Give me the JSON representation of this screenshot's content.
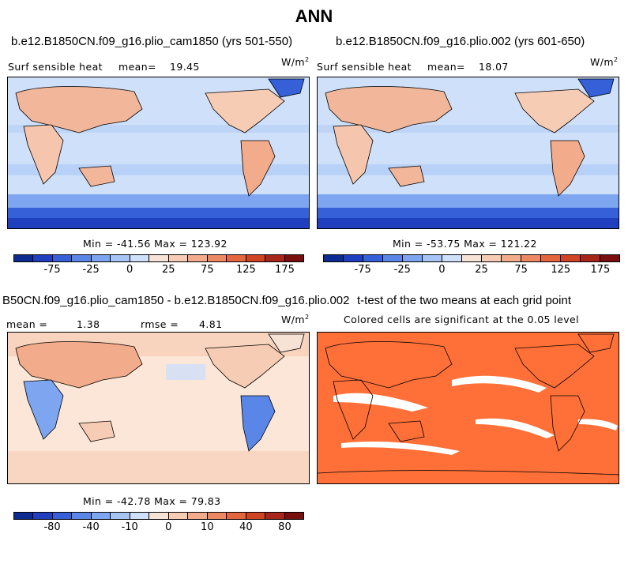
{
  "figure_title": "ANN",
  "units": "W/m",
  "units_sup": "2",
  "panels": {
    "p1": {
      "title": "b.e12.B1850CN.f09_g16.plio_cam1850 (yrs 501-550)",
      "var_label": "Surf sensible heat",
      "stat_label": "mean=",
      "stat_value": "19.45",
      "minmax": "Min = -41.56 Max = 123.92"
    },
    "p2": {
      "title": "b.e12.B1850CN.f09_g16.plio.002 (yrs 601-650)",
      "var_label": "Surf sensible heat",
      "stat_label": "mean=",
      "stat_value": "18.07",
      "minmax": "Min = -53.75 Max = 121.22"
    },
    "p3": {
      "title": "B50CN.f09_g16.plio_cam1850 - b.e12.B1850CN.f09_g16.plio.002",
      "mean_label": "mean =",
      "mean_value": "1.38",
      "rmse_label": "rmse =",
      "rmse_value": "4.81",
      "minmax": "Min = -42.78 Max = 79.83"
    },
    "p4": {
      "title": "t-test of the two means at each grid point",
      "subtitle": "Colored cells are significant at the 0.05 level"
    }
  },
  "colorbars": {
    "abs": {
      "colors": [
        "#0c2a8f",
        "#1f3fbf",
        "#3560d8",
        "#5a86e8",
        "#7ea6f0",
        "#a6c5f5",
        "#cfe0fa",
        "#f7e3d6",
        "#f7ccb4",
        "#f2ab8b",
        "#ec8963",
        "#e3663f",
        "#cf4422",
        "#a8251a",
        "#7a0f10"
      ],
      "tick_labels": [
        "-75",
        "-25",
        "0",
        "25",
        "75",
        "125",
        "175"
      ]
    },
    "diff": {
      "colors": [
        "#0c2a8f",
        "#1f3fbf",
        "#3560d8",
        "#5a86e8",
        "#7ea6f0",
        "#a6c5f5",
        "#cfe0fa",
        "#f7e3d6",
        "#f7ccb4",
        "#f2ab8b",
        "#ec8963",
        "#e3663f",
        "#cf4422",
        "#a8251a",
        "#7a0f10"
      ],
      "tick_labels": [
        "-80",
        "-40",
        "-10",
        "0",
        "10",
        "40",
        "80"
      ]
    }
  },
  "map_colors": {
    "ocean_abs": "#cfe0fa",
    "ocean_diff": "#fbe6d8",
    "land_warm": "#f2b79a",
    "south_blue": "#3560d8",
    "deep_blue": "#1f3fbf",
    "ttest_fill": "#ff7038"
  },
  "chart_data": [
    {
      "type": "heatmap",
      "title": "b.e12.B1850CN.f09_g16.plio_cam1850 (yrs 501-550)",
      "field": "Surf sensible heat",
      "units": "W/m2",
      "mean": 19.45,
      "min": -41.56,
      "max": 123.92
    },
    {
      "type": "heatmap",
      "title": "b.e12.B1850CN.f09_g16.plio.002 (yrs 601-650)",
      "field": "Surf sensible heat",
      "units": "W/m2",
      "mean": 18.07,
      "min": -53.75,
      "max": 121.22
    },
    {
      "type": "heatmap",
      "title": "B50CN.f09_g16.plio_cam1850 - b.e12.B1850CN.f09_g16.plio.002",
      "units": "W/m2",
      "mean": 1.38,
      "rmse": 4.81,
      "min": -42.78,
      "max": 79.83
    },
    {
      "type": "heatmap",
      "title": "t-test of the two means at each grid point",
      "subtitle": "Colored cells are significant at the 0.05 level"
    }
  ]
}
